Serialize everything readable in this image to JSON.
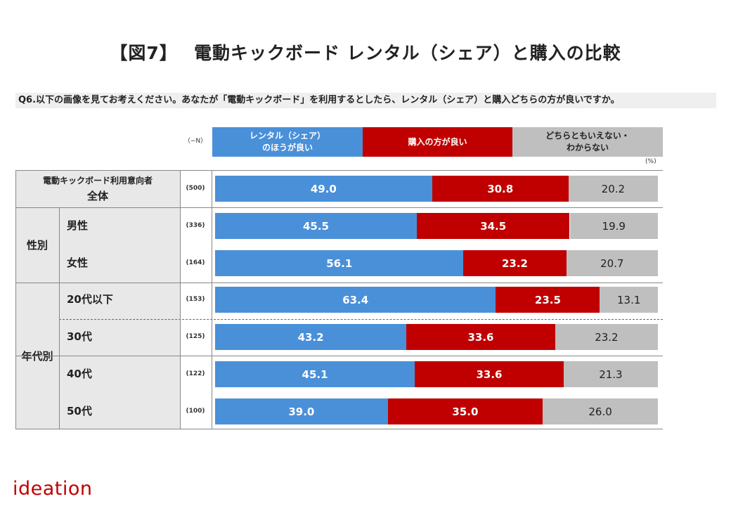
{
  "title": "【図7】　 電動キックボード レンタル（シェア）と購入の比較",
  "question": "Q6.以下の画像を見てお考えください。あなたが「電動キックボード」を利用するとしたら、レンタル（シェア）と購入どちらの方が良いですか。",
  "n_header": "（−N）",
  "unit": "(%)",
  "legend": {
    "rent_line1": "レンタル（シェア）",
    "rent_line2": "のほうが良い",
    "buy": "購入の方が良い",
    "dk_line1": "どちらともいえない・",
    "dk_line2": "わからない"
  },
  "groups": {
    "total_line1": "電動キックボード利用意向者",
    "total_line2": "全体",
    "gender": "性別",
    "age": "年代別"
  },
  "colors": {
    "rent": "#4a90d9",
    "buy": "#c00000",
    "dk": "#bfbfbf"
  },
  "chart_data": {
    "type": "bar",
    "stacked": true,
    "orientation": "horizontal",
    "ylim": [
      0,
      100
    ],
    "series_names": [
      "レンタル（シェア）のほうが良い",
      "購入の方が良い",
      "どちらともいえない・わからない"
    ],
    "rows": [
      {
        "label": "全体",
        "n": "(500)",
        "values": [
          49.0,
          30.8,
          20.2
        ],
        "labels": [
          "49.0",
          "30.8",
          "20.2"
        ]
      },
      {
        "label": "男性",
        "n": "(336)",
        "values": [
          45.5,
          34.5,
          19.9
        ],
        "labels": [
          "45.5",
          "34.5",
          "19.9"
        ]
      },
      {
        "label": "女性",
        "n": "(164)",
        "values": [
          56.1,
          23.2,
          20.7
        ],
        "labels": [
          "56.1",
          "23.2",
          "20.7"
        ]
      },
      {
        "label": "20代以下",
        "n": "(153)",
        "values": [
          63.4,
          23.5,
          13.1
        ],
        "labels": [
          "63.4",
          "23.5",
          "13.1"
        ]
      },
      {
        "label": "30代",
        "n": "(125)",
        "values": [
          43.2,
          33.6,
          23.2
        ],
        "labels": [
          "43.2",
          "33.6",
          "23.2"
        ]
      },
      {
        "label": "40代",
        "n": "(122)",
        "values": [
          45.1,
          33.6,
          21.3
        ],
        "labels": [
          "45.1",
          "33.6",
          "21.3"
        ]
      },
      {
        "label": "50代",
        "n": "(100)",
        "values": [
          39.0,
          35.0,
          26.0
        ],
        "labels": [
          "39.0",
          "35.0",
          "26.0"
        ]
      }
    ]
  },
  "logo": "ideation"
}
